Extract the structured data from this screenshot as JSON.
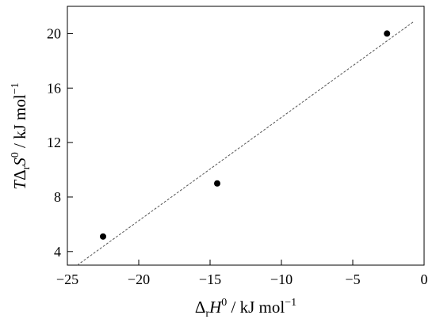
{
  "chart_data": {
    "type": "scatter",
    "x_label": [
      "Δ",
      "r",
      "H",
      "0",
      " / kJ mol",
      "−1"
    ],
    "y_label": [
      "T",
      "Δ",
      "r",
      "S",
      "0",
      " / kJ mol",
      "−1"
    ],
    "x": [
      -22.5,
      -14.5,
      -2.6
    ],
    "values": [
      5.1,
      9.0,
      20.0
    ],
    "color": "#000000",
    "fit_line": {
      "x": [
        -24.3,
        -0.7
      ],
      "values": [
        3.0,
        20.9
      ],
      "color": "#555555"
    },
    "xlim": [
      -25,
      0
    ],
    "xticks": [
      {
        "value": -25,
        "label": "−25"
      },
      {
        "value": -20,
        "label": "−20"
      },
      {
        "value": -15,
        "label": "−15"
      },
      {
        "value": -10,
        "label": "−10"
      },
      {
        "value": -5,
        "label": "−5"
      },
      0
    ],
    "ylim": [
      3,
      22
    ],
    "yticks": [
      4,
      8,
      12,
      16,
      20
    ]
  }
}
